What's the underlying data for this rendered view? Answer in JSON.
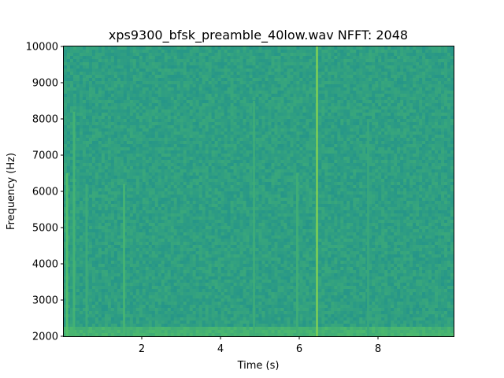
{
  "chart_data": {
    "type": "heatmap",
    "title": "xps9300_bfsk_preamble_40low.wav  NFFT: 2048",
    "xlabel": "Time (s)",
    "ylabel": "Frequency (Hz)",
    "xlim": [
      0.02,
      9.92
    ],
    "ylim": [
      2000,
      10000
    ],
    "x_ticks": [
      2,
      4,
      6,
      8
    ],
    "x_tick_labels": [
      "2",
      "4",
      "6",
      "8"
    ],
    "y_ticks": [
      2000,
      3000,
      4000,
      5000,
      6000,
      7000,
      8000,
      9000,
      10000
    ],
    "y_tick_labels": [
      "2000",
      "3000",
      "4000",
      "5000",
      "6000",
      "7000",
      "8000",
      "9000",
      "10000"
    ],
    "colormap": "viridis",
    "background_level": 0.56,
    "low_frequency_band": {
      "freq_range_hz": [
        2000,
        2300
      ],
      "level": 0.66
    },
    "time_highlights": [
      {
        "time_s": 0.1,
        "freq_range_hz": [
          2000,
          6500
        ],
        "level": 0.72
      },
      {
        "time_s": 0.28,
        "freq_range_hz": [
          2000,
          8200
        ],
        "level": 0.66
      },
      {
        "time_s": 0.6,
        "freq_range_hz": [
          2000,
          6200
        ],
        "level": 0.62
      },
      {
        "time_s": 1.55,
        "freq_range_hz": [
          2000,
          6200
        ],
        "level": 0.66
      },
      {
        "time_s": 4.85,
        "freq_range_hz": [
          2000,
          8500
        ],
        "level": 0.62
      },
      {
        "time_s": 5.95,
        "freq_range_hz": [
          2000,
          6500
        ],
        "level": 0.63
      },
      {
        "time_s": 6.45,
        "freq_range_hz": [
          2000,
          10000
        ],
        "level": 0.8
      },
      {
        "time_s": 7.75,
        "freq_range_hz": [
          2000,
          8000
        ],
        "level": 0.6
      }
    ],
    "grid": false,
    "legend": false
  }
}
